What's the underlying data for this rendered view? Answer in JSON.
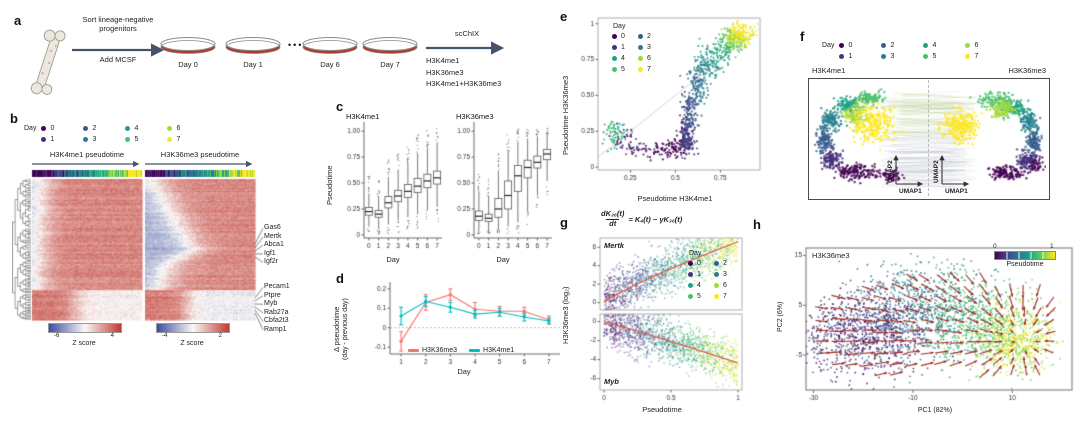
{
  "panel_letters": {
    "a": "a",
    "b": "b",
    "c": "c",
    "d": "d",
    "e": "e",
    "f": "f",
    "g": "g",
    "h": "h"
  },
  "day_legend": {
    "title": "Day",
    "days": [
      "0",
      "1",
      "2",
      "3",
      "4",
      "5",
      "6",
      "7"
    ],
    "colors": [
      "#440154",
      "#46327e",
      "#365c8d",
      "#277f8e",
      "#1fa187",
      "#4ac16d",
      "#a0da39",
      "#fde725"
    ]
  },
  "panel_a": {
    "sort_label": "Sort lineage-negative progenitors",
    "mcsf_label": "Add MCSF",
    "dish_labels": [
      "Day 0",
      "Day 1",
      "Day 6",
      "Day 7"
    ],
    "ellipsis": "•••",
    "scchix_label": "scChIX",
    "marks": [
      "H3K4me1",
      "H3K36me3",
      "H3K4me1+H3K36me3"
    ]
  },
  "panel_g": {
    "equation": {
      "numerator": "dK₃₆(t)",
      "denominator": "dt",
      "rhs": "= K₄(t) − γK₃₆(t)"
    }
  },
  "chart_data": [
    {
      "id": "b_heatmaps",
      "type": "heatmap",
      "title_left": "H3K4me1 pseudotime",
      "title_right": "H3K36me3 pseudotime",
      "annotation": "Day colors along pseudotime-ordered cells",
      "colormap": "blue-white-red",
      "cbar_left": {
        "min": "-6",
        "max": "4",
        "label": "Z score"
      },
      "cbar_right": {
        "min": "-4",
        "max": "2",
        "label": "Z score"
      },
      "genes_top": [
        "Gas6",
        "Mertk",
        "Abca1",
        "Igf1",
        "Igf2r"
      ],
      "genes_bottom": [
        "Pecam1",
        "Ptpre",
        "Myb",
        "Rab27a",
        "Cbfa2t3",
        "Ramp1"
      ]
    },
    {
      "id": "c_h3k4me1",
      "type": "box",
      "title": "H3K4me1",
      "xlabel": "Day",
      "ylabel": "Pseudotime",
      "categories": [
        "0",
        "1",
        "2",
        "3",
        "4",
        "5",
        "6",
        "7"
      ],
      "ytick_labels": [
        "0",
        "0.25",
        "0.50",
        "0.75",
        "1.00"
      ],
      "ytick_values": [
        0,
        0.25,
        0.5,
        0.75,
        1
      ],
      "ylim": [
        -0.03,
        1.05
      ],
      "boxes": [
        [
          0.08,
          0.19,
          0.225,
          0.265,
          0.4
        ],
        [
          0.06,
          0.17,
          0.2,
          0.235,
          0.37
        ],
        [
          0.1,
          0.26,
          0.31,
          0.37,
          0.56
        ],
        [
          0.14,
          0.32,
          0.375,
          0.43,
          0.63
        ],
        [
          0.17,
          0.36,
          0.42,
          0.485,
          0.7
        ],
        [
          0.2,
          0.41,
          0.47,
          0.545,
          0.79
        ],
        [
          0.24,
          0.455,
          0.52,
          0.585,
          0.84
        ],
        [
          0.27,
          0.49,
          0.55,
          0.615,
          0.88
        ]
      ]
    },
    {
      "id": "c_h3k36me3",
      "type": "box",
      "title": "H3K36me3",
      "xlabel": "Day",
      "categories": [
        "0",
        "1",
        "2",
        "3",
        "4",
        "5",
        "6",
        "7"
      ],
      "ytick_labels": [
        "0",
        "0.25",
        "0.50",
        "0.75",
        "1.00"
      ],
      "ytick_values": [
        0,
        0.25,
        0.5,
        0.75,
        1
      ],
      "ylim": [
        -0.03,
        1.05
      ],
      "boxes": [
        [
          0.05,
          0.14,
          0.18,
          0.23,
          0.42
        ],
        [
          0.04,
          0.13,
          0.16,
          0.2,
          0.38
        ],
        [
          0.05,
          0.17,
          0.25,
          0.35,
          0.62
        ],
        [
          0.08,
          0.25,
          0.38,
          0.52,
          0.8
        ],
        [
          0.12,
          0.42,
          0.57,
          0.67,
          0.9
        ],
        [
          0.22,
          0.55,
          0.65,
          0.72,
          0.93
        ],
        [
          0.38,
          0.645,
          0.7,
          0.76,
          0.95
        ],
        [
          0.52,
          0.725,
          0.78,
          0.825,
          0.97
        ]
      ]
    },
    {
      "id": "d_delta",
      "type": "line",
      "xlabel": "Day",
      "ylabel": [
        "Δ pseudotime",
        "(day - previous day)"
      ],
      "x": [
        1,
        2,
        3,
        4,
        5,
        6,
        7
      ],
      "ytick_labels": [
        "0.2",
        "0.1",
        "0",
        "-0.1"
      ],
      "ytick_values": [
        0.2,
        0.1,
        0,
        -0.1
      ],
      "ylim": [
        -0.135,
        0.225
      ],
      "series": [
        {
          "name": "H3K36me3",
          "color": "#F8766D",
          "values": [
            -0.07,
            0.13,
            0.17,
            0.095,
            0.085,
            0.085,
            0.04
          ],
          "errors": [
            0.05,
            0.04,
            0.03,
            0.035,
            0.025,
            0.02,
            0.02
          ]
        },
        {
          "name": "H3K4me1",
          "color": "#00BFC4",
          "values": [
            0.06,
            0.135,
            0.105,
            0.07,
            0.08,
            0.055,
            0.035
          ],
          "errors": [
            0.045,
            0.025,
            0.025,
            0.02,
            0.02,
            0.02,
            0.015
          ]
        }
      ]
    },
    {
      "id": "e_compare",
      "type": "scatter",
      "xlabel": "Pseudotime H3K4me1",
      "ylabel": "Pseudotime H3K36me3",
      "legend_title": "Day",
      "xtick_labels": [
        "0.25",
        "0.5",
        "0.75"
      ],
      "xtick_values": [
        0.25,
        0.5,
        0.75
      ],
      "ytick_labels": [
        "0",
        "0.25",
        "0.50",
        "0.75",
        "1"
      ],
      "ytick_values": [
        0,
        0.25,
        0.5,
        0.75,
        1
      ],
      "xlim": [
        0.07,
        0.97
      ],
      "ylim": [
        -0.02,
        1.04
      ],
      "identity_line": true,
      "clusters": [
        [
          0,
          0.48,
          0.13,
          0.05,
          0.03,
          80
        ],
        [
          0,
          0.56,
          0.22,
          0.025,
          0.05,
          50
        ],
        [
          0,
          0.36,
          0.11,
          0.06,
          0.025,
          35
        ],
        [
          0,
          0.21,
          0.2,
          0.035,
          0.045,
          25
        ],
        [
          1,
          0.555,
          0.17,
          0.02,
          0.05,
          70
        ],
        [
          1,
          0.57,
          0.33,
          0.02,
          0.09,
          70
        ],
        [
          1,
          0.3,
          0.13,
          0.05,
          0.03,
          20
        ],
        [
          2,
          0.585,
          0.42,
          0.025,
          0.1,
          80
        ],
        [
          2,
          0.615,
          0.58,
          0.025,
          0.06,
          40
        ],
        [
          2,
          0.56,
          0.25,
          0.02,
          0.05,
          30
        ],
        [
          3,
          0.63,
          0.58,
          0.03,
          0.09,
          70
        ],
        [
          3,
          0.67,
          0.7,
          0.03,
          0.05,
          50
        ],
        [
          4,
          0.7,
          0.74,
          0.04,
          0.05,
          60
        ],
        [
          4,
          0.755,
          0.815,
          0.035,
          0.04,
          45
        ],
        [
          4,
          0.17,
          0.22,
          0.035,
          0.05,
          40
        ],
        [
          5,
          0.8,
          0.875,
          0.04,
          0.045,
          90
        ],
        [
          5,
          0.155,
          0.245,
          0.03,
          0.04,
          30
        ],
        [
          6,
          0.845,
          0.905,
          0.035,
          0.04,
          110
        ],
        [
          7,
          0.865,
          0.93,
          0.035,
          0.035,
          110
        ]
      ]
    },
    {
      "id": "f_umap",
      "type": "umap-pair",
      "legend_title": "Day",
      "title_left": "H3K4me1",
      "title_right": "H3K36me3",
      "axis_labels": [
        "UMAP1",
        "UMAP2"
      ],
      "left_blobs": [
        [
          0,
          45,
          92,
          18,
          7,
          140
        ],
        [
          0,
          80,
          95,
          12,
          6,
          70
        ],
        [
          1,
          22,
          78,
          9,
          9,
          110
        ],
        [
          2,
          14,
          60,
          7,
          11,
          110
        ],
        [
          3,
          22,
          40,
          9,
          10,
          110
        ],
        [
          4,
          38,
          26,
          12,
          8,
          120
        ],
        [
          5,
          60,
          18,
          14,
          6,
          110
        ],
        [
          6,
          45,
          35,
          12,
          9,
          110
        ],
        [
          7,
          63,
          44,
          19,
          16,
          260
        ]
      ],
      "right_blobs": [
        [
          0,
          195,
          93,
          16,
          6,
          130
        ],
        [
          0,
          225,
          85,
          7,
          7,
          60
        ],
        [
          1,
          216,
          80,
          9,
          8,
          110
        ],
        [
          2,
          224,
          62,
          6,
          10,
          110
        ],
        [
          3,
          218,
          42,
          8,
          10,
          110
        ],
        [
          4,
          205,
          28,
          10,
          8,
          110
        ],
        [
          5,
          185,
          20,
          16,
          7,
          110
        ],
        [
          6,
          192,
          30,
          13,
          8,
          110
        ],
        [
          7,
          150,
          46,
          16,
          13,
          260
        ]
      ],
      "link_count": 150
    },
    {
      "id": "g_mertk",
      "type": "scatter-fit",
      "gene": "Mertk",
      "ylabel": "H3K36me3 (log₂)",
      "legend_title": "Day",
      "ytick_labels": [
        "6",
        "4",
        "2",
        "0"
      ],
      "ytick_values": [
        6,
        4,
        2,
        0
      ],
      "ylim": [
        -0.8,
        7.0
      ],
      "fit": {
        "amplitude": 6.6,
        "power": 0.85,
        "color": "#D95F4B"
      },
      "noise_sd": 1.3,
      "n_points": 1500
    },
    {
      "id": "g_myb",
      "type": "scatter-fit",
      "gene": "Myb",
      "xlabel": "Pseudotime",
      "xtick_labels": [
        "0",
        "0.5",
        "1"
      ],
      "xtick_values": [
        0,
        0.5,
        1
      ],
      "ytick_labels": [
        "0",
        "-2",
        "-4",
        "-6"
      ],
      "ytick_values": [
        0,
        -2,
        -4,
        -6
      ],
      "ylim": [
        -7.2,
        0.8
      ],
      "fit": {
        "amplitude": -4.35,
        "power": 1.05,
        "color": "#D95F4B"
      },
      "noise_sd": 1.15,
      "n_points": 1500
    },
    {
      "id": "h_flow",
      "type": "scatter-flow",
      "label": "H3K36me3",
      "xlabel": "PC1 (82%)",
      "ylabel": "PC2 (6%)",
      "xtick_labels": [
        "-30",
        "-10",
        "10"
      ],
      "xtick_values": [
        -30,
        -10,
        10
      ],
      "ytick_labels": [
        "15",
        "5",
        "-5"
      ],
      "ytick_values": [
        15,
        5,
        -5
      ],
      "xlim": [
        -31.5,
        22
      ],
      "ylim": [
        -12,
        16.5
      ],
      "colorbar": {
        "min": "0",
        "max": "1",
        "label": "Pseudotime"
      },
      "arrow_color": "#9E2B25",
      "attractor": [
        12,
        -2
      ],
      "blobs": [
        [
          -20,
          -1,
          6.5,
          4,
          900,
          0.12,
          0.1
        ],
        [
          -12,
          5,
          5,
          4,
          350,
          0.35,
          0.1
        ],
        [
          -3,
          4,
          5,
          4.5,
          450,
          0.55,
          0.1
        ],
        [
          6,
          0,
          5,
          4,
          500,
          0.75,
          0.08
        ],
        [
          11,
          -2,
          3.5,
          3,
          450,
          0.92,
          0.06
        ]
      ],
      "mask_ellipses": [
        [
          -18,
          0,
          16,
          9.5
        ],
        [
          -4,
          3,
          13,
          10.5
        ],
        [
          9,
          0,
          12.5,
          11
        ]
      ]
    }
  ]
}
